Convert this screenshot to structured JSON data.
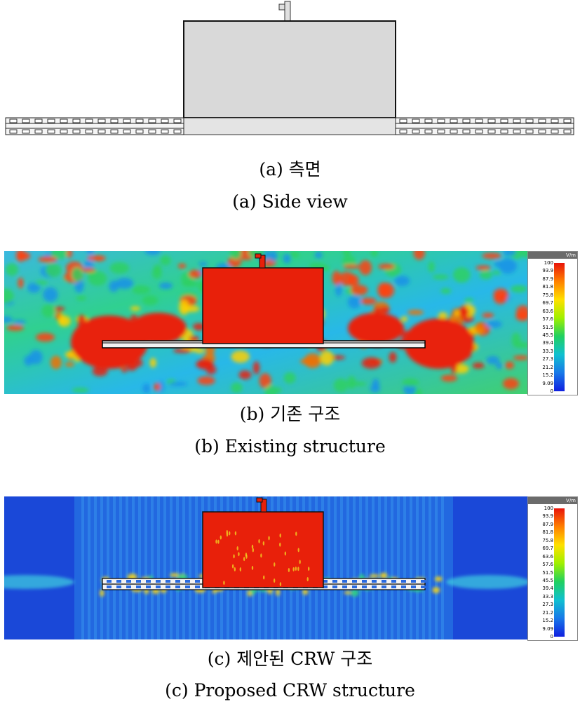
{
  "captions": {
    "a_ko": "(a) 측면",
    "a_en": "(a) Side view",
    "b_ko": "(b) 기존 구조",
    "b_en": "(b) Existing structure",
    "c_ko": "(c) 제안된 CRW 구조",
    "c_en": "(c) Proposed CRW structure"
  },
  "color_scale": {
    "unit": "V/m",
    "ticks": [
      "100",
      "93.9",
      "87.9",
      "81.8",
      "75.8",
      "69.7",
      "63.6",
      "57.6",
      "51.5",
      "45.5",
      "39.4",
      "33.3",
      "27.3",
      "21.2",
      "15.2",
      "9.09",
      "0"
    ]
  },
  "colors": {
    "field_max": "#e8200a",
    "field_min": "#1020e0",
    "structure_fill": "#d9d9d9"
  }
}
